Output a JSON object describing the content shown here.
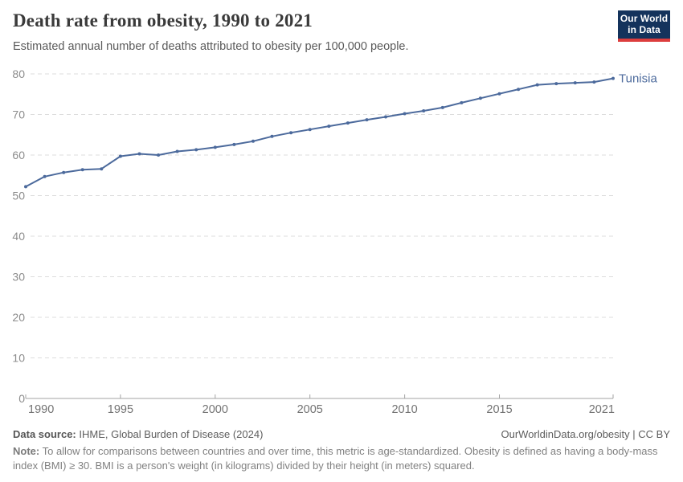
{
  "header": {
    "title": "Death rate from obesity, 1990 to 2021",
    "subtitle": "Estimated annual number of deaths attributed to obesity per 100,000 people.",
    "logo": {
      "line1": "Our World",
      "line2": "in Data",
      "bg_color": "#14335c",
      "bar_color": "#dc3d3d"
    }
  },
  "chart_data": {
    "type": "line",
    "title": "Death rate from obesity, 1990 to 2021",
    "xlabel": "",
    "ylabel": "Deaths attributed to obesity per 100,000 people",
    "entity": "Tunisia",
    "x": [
      1990,
      1991,
      1992,
      1993,
      1994,
      1995,
      1996,
      1997,
      1998,
      1999,
      2000,
      2001,
      2002,
      2003,
      2004,
      2005,
      2006,
      2007,
      2008,
      2009,
      2010,
      2011,
      2012,
      2013,
      2014,
      2015,
      2016,
      2017,
      2018,
      2019,
      2020,
      2021
    ],
    "series": [
      {
        "name": "Tunisia",
        "color": "#4c6a9c",
        "values": [
          52.2,
          54.7,
          55.7,
          56.4,
          56.6,
          59.7,
          60.3,
          60.0,
          60.9,
          61.3,
          61.9,
          62.6,
          63.4,
          64.6,
          65.5,
          66.3,
          67.1,
          67.9,
          68.7,
          69.4,
          70.2,
          70.9,
          71.7,
          72.9,
          74.0,
          75.1,
          76.2,
          77.3,
          77.6,
          77.8,
          78.0,
          78.9
        ]
      }
    ],
    "ylim": [
      0,
      80
    ],
    "y_ticks": [
      0,
      10,
      20,
      30,
      40,
      50,
      60,
      70,
      80
    ],
    "x_tick_years": [
      1990,
      1995,
      2000,
      2005,
      2010,
      2015,
      2021
    ],
    "grid": true,
    "legend_position": "line-end-label",
    "colors": {
      "gridline": "#dcdcdc",
      "axis": "#a3a3a3",
      "y_tick_label": "#8c8c8c",
      "x_tick_label": "#737373"
    }
  },
  "footer": {
    "datasource_label": "Data source:",
    "datasource_text": " IHME, Global Burden of Disease (2024)",
    "attribution": "OurWorldinData.org/obesity | CC BY",
    "note_label": "Note:",
    "note_text": " To allow for comparisons between countries and over time, this metric is age-standardized. Obesity is defined as having a body-mass index (BMI) ≥ 30. BMI is a person's weight (in kilograms) divided by their height (in meters) squared."
  }
}
